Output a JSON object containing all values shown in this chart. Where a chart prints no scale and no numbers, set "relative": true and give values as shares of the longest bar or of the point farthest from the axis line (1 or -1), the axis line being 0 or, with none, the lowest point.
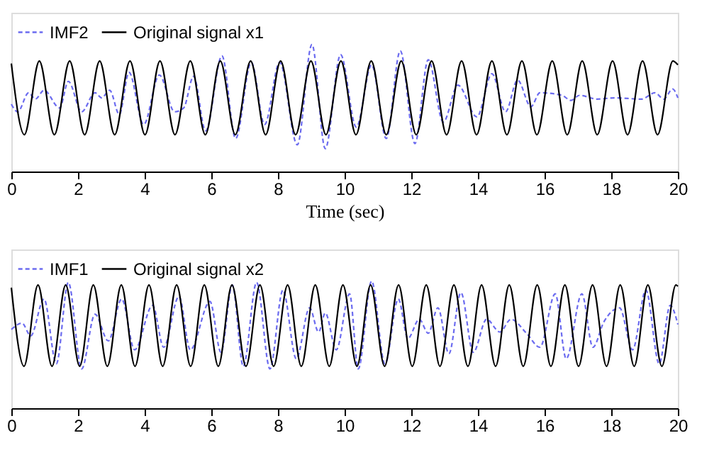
{
  "chart_data": [
    {
      "type": "line",
      "xlabel": "Time (sec)",
      "xlim": [
        0,
        20
      ],
      "xticks": [
        0,
        2,
        4,
        6,
        8,
        10,
        12,
        14,
        16,
        18,
        20
      ],
      "relative": true,
      "legend": "top left",
      "grid": false,
      "series": [
        {
          "name": "IMF2",
          "color": "#6b6bf0",
          "line_style": "dashed",
          "x": [
            0,
            0.19,
            0.52,
            0.72,
            0.98,
            1.45,
            1.71,
            2.11,
            2.51,
            2.71,
            2.95,
            3.24,
            3.53,
            3.97,
            4.44,
            4.9,
            5.17,
            5.47,
            5.83,
            6.32,
            6.73,
            7.2,
            7.6,
            8.05,
            8.58,
            9.02,
            9.42,
            9.88,
            10.35,
            10.81,
            11.25,
            11.67,
            12.11,
            12.51,
            12.96,
            13.4,
            13.97,
            14.42,
            14.83,
            15.19,
            15.59,
            15.86,
            16.52,
            16.79,
            17.05,
            17.58,
            18.12,
            18.91,
            19.31,
            19.58,
            19.84,
            20
          ],
          "values": [
            0.53,
            0.47,
            0.62,
            0.57,
            0.64,
            0.5,
            0.71,
            0.47,
            0.62,
            0.58,
            0.64,
            0.45,
            0.78,
            0.37,
            0.76,
            0.47,
            0.5,
            0.75,
            0.32,
            0.91,
            0.26,
            0.86,
            0.37,
            0.86,
            0.21,
            1,
            0.18,
            0.92,
            0.35,
            0.84,
            0.26,
            0.95,
            0.22,
            0.88,
            0.39,
            0.68,
            0.43,
            0.77,
            0.47,
            0.72,
            0.51,
            0.62,
            0.6,
            0.56,
            0.6,
            0.57,
            0.58,
            0.57,
            0.62,
            0.57,
            0.65,
            0.58
          ]
        },
        {
          "name": "Original signal x1",
          "color": "#000000",
          "line_style": "solid",
          "x": [
            0,
            0.39,
            0.84,
            1.29,
            1.75,
            2.2,
            2.65,
            3.1,
            3.56,
            4.01,
            4.46,
            4.91,
            5.37,
            5.82,
            6.27,
            6.72,
            7.18,
            7.63,
            8.08,
            8.53,
            8.99,
            9.44,
            9.89,
            10.34,
            10.8,
            11.25,
            11.7,
            12.15,
            12.61,
            13.06,
            13.51,
            13.96,
            14.42,
            14.87,
            15.32,
            15.77,
            16.23,
            16.68,
            17.13,
            17.58,
            18.04,
            18.49,
            18.94,
            19.39,
            19.85,
            20
          ],
          "values": [
            0.85,
            0.29,
            0.87,
            0.29,
            0.87,
            0.29,
            0.87,
            0.29,
            0.87,
            0.29,
            0.87,
            0.29,
            0.87,
            0.29,
            0.87,
            0.29,
            0.87,
            0.29,
            0.87,
            0.29,
            0.87,
            0.29,
            0.87,
            0.29,
            0.87,
            0.29,
            0.87,
            0.29,
            0.87,
            0.29,
            0.87,
            0.29,
            0.87,
            0.29,
            0.87,
            0.29,
            0.87,
            0.29,
            0.87,
            0.29,
            0.87,
            0.29,
            0.87,
            0.29,
            0.87,
            0.84
          ]
        }
      ]
    },
    {
      "type": "line",
      "xlim": [
        0,
        20
      ],
      "xticks": [
        0,
        2,
        4,
        6,
        8,
        10,
        12,
        14,
        16,
        18,
        20
      ],
      "relative": true,
      "legend": "top left",
      "grid": false,
      "series": [
        {
          "name": "IMF1",
          "color": "#6b6bf0",
          "line_style": "dashed",
          "x": [
            0,
            0.32,
            0.58,
            0.98,
            1.35,
            1.71,
            2.11,
            2.51,
            2.91,
            3.31,
            3.7,
            4.24,
            4.57,
            5.03,
            5.37,
            5.96,
            6.29,
            6.63,
            6.96,
            7.36,
            7.76,
            8.15,
            8.55,
            8.95,
            9.22,
            9.42,
            9.75,
            10.15,
            10.41,
            10.81,
            11.21,
            11.61,
            11.9,
            12.24,
            12.51,
            12.8,
            13.13,
            13.49,
            13.86,
            14.26,
            14.66,
            14.99,
            15.46,
            15.86,
            16.32,
            16.65,
            17.12,
            17.45,
            17.78,
            18.25,
            18.64,
            19.04,
            19.44,
            19.77,
            20
          ],
          "values": [
            0.62,
            0.67,
            0.57,
            0.86,
            0.35,
            0.99,
            0.31,
            0.74,
            0.53,
            0.86,
            0.46,
            0.81,
            0.48,
            0.88,
            0.46,
            0.84,
            0.44,
            0.97,
            0.33,
            0.99,
            0.31,
            0.93,
            0.39,
            0.79,
            0.6,
            0.75,
            0.46,
            0.9,
            0.31,
            1,
            0.35,
            0.86,
            0.55,
            0.7,
            0.59,
            0.79,
            0.43,
            0.91,
            0.44,
            0.7,
            0.6,
            0.7,
            0.59,
            0.48,
            0.9,
            0.39,
            0.9,
            0.48,
            0.68,
            0.79,
            0.46,
            0.93,
            0.35,
            0.81,
            0.66
          ]
        },
        {
          "name": "Original signal x2",
          "color": "#000000",
          "line_style": "solid",
          "x": [
            0,
            0.38,
            0.8,
            1.22,
            1.63,
            2.05,
            2.46,
            2.88,
            3.3,
            3.71,
            4.13,
            4.54,
            4.96,
            5.38,
            5.79,
            6.21,
            6.62,
            7.04,
            7.46,
            7.87,
            8.29,
            8.7,
            9.12,
            9.54,
            9.95,
            10.37,
            10.78,
            11.2,
            11.62,
            12.03,
            12.45,
            12.86,
            13.28,
            13.7,
            14.11,
            14.53,
            14.94,
            15.36,
            15.78,
            16.19,
            16.61,
            17.02,
            17.44,
            17.86,
            18.27,
            18.69,
            19.1,
            19.52,
            19.94,
            20
          ],
          "values": [
            0.95,
            0.33,
            0.97,
            0.33,
            0.97,
            0.33,
            0.97,
            0.33,
            0.97,
            0.33,
            0.97,
            0.33,
            0.97,
            0.33,
            0.97,
            0.33,
            0.97,
            0.33,
            0.97,
            0.33,
            0.97,
            0.33,
            0.97,
            0.33,
            0.97,
            0.33,
            0.97,
            0.33,
            0.97,
            0.33,
            0.97,
            0.33,
            0.97,
            0.33,
            0.97,
            0.33,
            0.97,
            0.33,
            0.97,
            0.33,
            0.97,
            0.33,
            0.97,
            0.33,
            0.97,
            0.33,
            0.97,
            0.33,
            0.97,
            0.96
          ]
        }
      ]
    }
  ]
}
